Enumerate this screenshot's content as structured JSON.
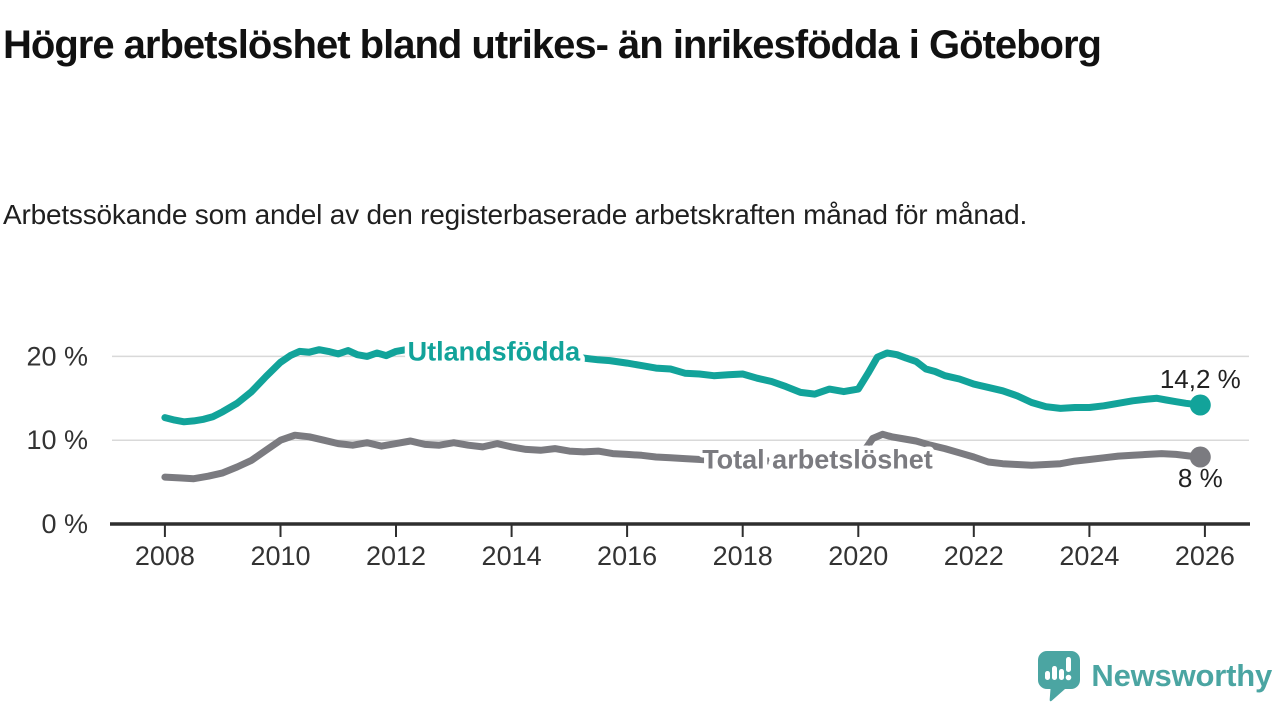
{
  "title": "Högre arbetslöshet bland utrikes- än inrikesfödda i Göteborg",
  "subtitle": "Arbetssökande som andel av den registerbaserade arbetskraften månad för månad.",
  "colors": {
    "teal_series": "#12a39a",
    "gray_series": "#7b7b80",
    "axis": "#2e2e2e",
    "grid": "#d9d9d9",
    "tick_text": "#333333",
    "value_text": "#222222",
    "logo_teal": "#4ba5a2"
  },
  "logo": {
    "text": "Newsworthy",
    "icon": "newsworthy-speech-bubble-bar-chart-icon"
  },
  "chart_data": {
    "type": "line",
    "title": "Högre arbetslöshet bland utrikes- än inrikesfödda i Göteborg",
    "subtitle": "Arbetssökande som andel av den registerbaserade arbetskraften månad för månad.",
    "xlabel": "",
    "ylabel": "",
    "grid": "horizontal",
    "legend_position": "inline-labels",
    "xlim": [
      2007.05,
      2026.78
    ],
    "ylim": [
      0,
      22
    ],
    "x_ticks": [
      2008,
      2010,
      2012,
      2014,
      2016,
      2018,
      2020,
      2022,
      2024,
      2026
    ],
    "x_tick_labels": [
      "2008",
      "2010",
      "2012",
      "2014",
      "2016",
      "2018",
      "2020",
      "2022",
      "2024",
      "2026"
    ],
    "y_ticks": [
      0,
      10,
      20
    ],
    "y_tick_labels": [
      "0 %",
      "10 %",
      "20 %"
    ],
    "series": [
      {
        "id": "utlandsfodda",
        "name": "Utlandsfödda",
        "color": "#12a39a",
        "end_label": "14,2 %",
        "end_label_side": "above",
        "label_pos": {
          "x": 2012.2,
          "y": 20.6
        },
        "points": [
          [
            2008.0,
            12.7
          ],
          [
            2008.17,
            12.4
          ],
          [
            2008.33,
            12.2
          ],
          [
            2008.5,
            12.3
          ],
          [
            2008.67,
            12.5
          ],
          [
            2008.83,
            12.8
          ],
          [
            2009.0,
            13.4
          ],
          [
            2009.25,
            14.4
          ],
          [
            2009.5,
            15.8
          ],
          [
            2009.75,
            17.6
          ],
          [
            2010.0,
            19.3
          ],
          [
            2010.17,
            20.1
          ],
          [
            2010.33,
            20.6
          ],
          [
            2010.5,
            20.5
          ],
          [
            2010.67,
            20.8
          ],
          [
            2010.83,
            20.6
          ],
          [
            2011.0,
            20.3
          ],
          [
            2011.17,
            20.7
          ],
          [
            2011.33,
            20.2
          ],
          [
            2011.5,
            20.0
          ],
          [
            2011.67,
            20.4
          ],
          [
            2011.83,
            20.1
          ],
          [
            2012.0,
            20.6
          ],
          [
            2012.17,
            20.8
          ],
          [
            2012.33,
            20.5
          ],
          [
            2012.5,
            20.6
          ],
          [
            2012.75,
            20.4
          ],
          [
            2013.0,
            20.6
          ],
          [
            2013.25,
            20.3
          ],
          [
            2013.5,
            20.4
          ],
          [
            2013.75,
            20.2
          ],
          [
            2014.0,
            20.3
          ],
          [
            2014.25,
            20.1
          ],
          [
            2014.5,
            20.2
          ],
          [
            2014.75,
            20.0
          ],
          [
            2015.0,
            19.9
          ],
          [
            2015.25,
            19.8
          ],
          [
            2015.5,
            19.6
          ],
          [
            2015.7,
            19.5
          ],
          [
            2016.0,
            19.2
          ],
          [
            2016.25,
            18.9
          ],
          [
            2016.5,
            18.6
          ],
          [
            2016.75,
            18.5
          ],
          [
            2017.0,
            18.0
          ],
          [
            2017.25,
            17.9
          ],
          [
            2017.5,
            17.7
          ],
          [
            2017.75,
            17.8
          ],
          [
            2018.0,
            17.9
          ],
          [
            2018.25,
            17.4
          ],
          [
            2018.5,
            17.0
          ],
          [
            2018.75,
            16.4
          ],
          [
            2019.0,
            15.7
          ],
          [
            2019.25,
            15.5
          ],
          [
            2019.5,
            16.1
          ],
          [
            2019.75,
            15.8
          ],
          [
            2020.0,
            16.1
          ],
          [
            2020.17,
            18.0
          ],
          [
            2020.33,
            19.9
          ],
          [
            2020.5,
            20.4
          ],
          [
            2020.67,
            20.2
          ],
          [
            2020.83,
            19.8
          ],
          [
            2021.0,
            19.4
          ],
          [
            2021.17,
            18.5
          ],
          [
            2021.33,
            18.2
          ],
          [
            2021.5,
            17.7
          ],
          [
            2021.75,
            17.3
          ],
          [
            2022.0,
            16.7
          ],
          [
            2022.25,
            16.3
          ],
          [
            2022.5,
            15.9
          ],
          [
            2022.75,
            15.3
          ],
          [
            2023.0,
            14.5
          ],
          [
            2023.25,
            14.0
          ],
          [
            2023.5,
            13.8
          ],
          [
            2023.75,
            13.9
          ],
          [
            2024.0,
            13.9
          ],
          [
            2024.25,
            14.1
          ],
          [
            2024.5,
            14.4
          ],
          [
            2024.75,
            14.7
          ],
          [
            2025.0,
            14.9
          ],
          [
            2025.17,
            15.0
          ],
          [
            2025.33,
            14.8
          ],
          [
            2025.5,
            14.6
          ],
          [
            2025.67,
            14.4
          ],
          [
            2025.92,
            14.2
          ]
        ]
      },
      {
        "id": "total",
        "name": "Total arbetslöshet",
        "color": "#7b7b80",
        "end_label": "8 %",
        "end_label_side": "below",
        "label_pos": {
          "x": 2017.3,
          "y": 7.7
        },
        "points": [
          [
            2008.0,
            5.6
          ],
          [
            2008.25,
            5.5
          ],
          [
            2008.5,
            5.4
          ],
          [
            2008.75,
            5.7
          ],
          [
            2009.0,
            6.1
          ],
          [
            2009.25,
            6.8
          ],
          [
            2009.5,
            7.6
          ],
          [
            2009.75,
            8.8
          ],
          [
            2010.0,
            10.0
          ],
          [
            2010.25,
            10.6
          ],
          [
            2010.5,
            10.4
          ],
          [
            2010.75,
            10.0
          ],
          [
            2011.0,
            9.6
          ],
          [
            2011.25,
            9.4
          ],
          [
            2011.5,
            9.7
          ],
          [
            2011.75,
            9.3
          ],
          [
            2012.0,
            9.6
          ],
          [
            2012.25,
            9.9
          ],
          [
            2012.5,
            9.5
          ],
          [
            2012.75,
            9.4
          ],
          [
            2013.0,
            9.7
          ],
          [
            2013.25,
            9.4
          ],
          [
            2013.5,
            9.2
          ],
          [
            2013.75,
            9.6
          ],
          [
            2014.0,
            9.2
          ],
          [
            2014.25,
            8.9
          ],
          [
            2014.5,
            8.8
          ],
          [
            2014.75,
            9.0
          ],
          [
            2015.0,
            8.7
          ],
          [
            2015.25,
            8.6
          ],
          [
            2015.5,
            8.7
          ],
          [
            2015.75,
            8.4
          ],
          [
            2016.0,
            8.3
          ],
          [
            2016.25,
            8.2
          ],
          [
            2016.5,
            8.0
          ],
          [
            2016.75,
            7.9
          ],
          [
            2017.0,
            7.8
          ],
          [
            2017.5,
            7.6
          ],
          [
            2018.0,
            7.7
          ],
          [
            2018.5,
            7.5
          ],
          [
            2019.0,
            7.3
          ],
          [
            2019.5,
            7.2
          ],
          [
            2019.75,
            7.3
          ],
          [
            2020.0,
            7.7
          ],
          [
            2020.25,
            10.2
          ],
          [
            2020.42,
            10.7
          ],
          [
            2020.58,
            10.4
          ],
          [
            2020.75,
            10.2
          ],
          [
            2021.0,
            9.9
          ],
          [
            2021.25,
            9.4
          ],
          [
            2021.5,
            9.0
          ],
          [
            2021.75,
            8.5
          ],
          [
            2022.0,
            8.0
          ],
          [
            2022.25,
            7.4
          ],
          [
            2022.5,
            7.2
          ],
          [
            2022.75,
            7.1
          ],
          [
            2023.0,
            7.0
          ],
          [
            2023.25,
            7.1
          ],
          [
            2023.5,
            7.2
          ],
          [
            2023.75,
            7.5
          ],
          [
            2024.0,
            7.7
          ],
          [
            2024.25,
            7.9
          ],
          [
            2024.5,
            8.1
          ],
          [
            2024.75,
            8.2
          ],
          [
            2025.0,
            8.3
          ],
          [
            2025.25,
            8.4
          ],
          [
            2025.5,
            8.3
          ],
          [
            2025.75,
            8.1
          ],
          [
            2025.92,
            8.0
          ]
        ]
      }
    ]
  }
}
